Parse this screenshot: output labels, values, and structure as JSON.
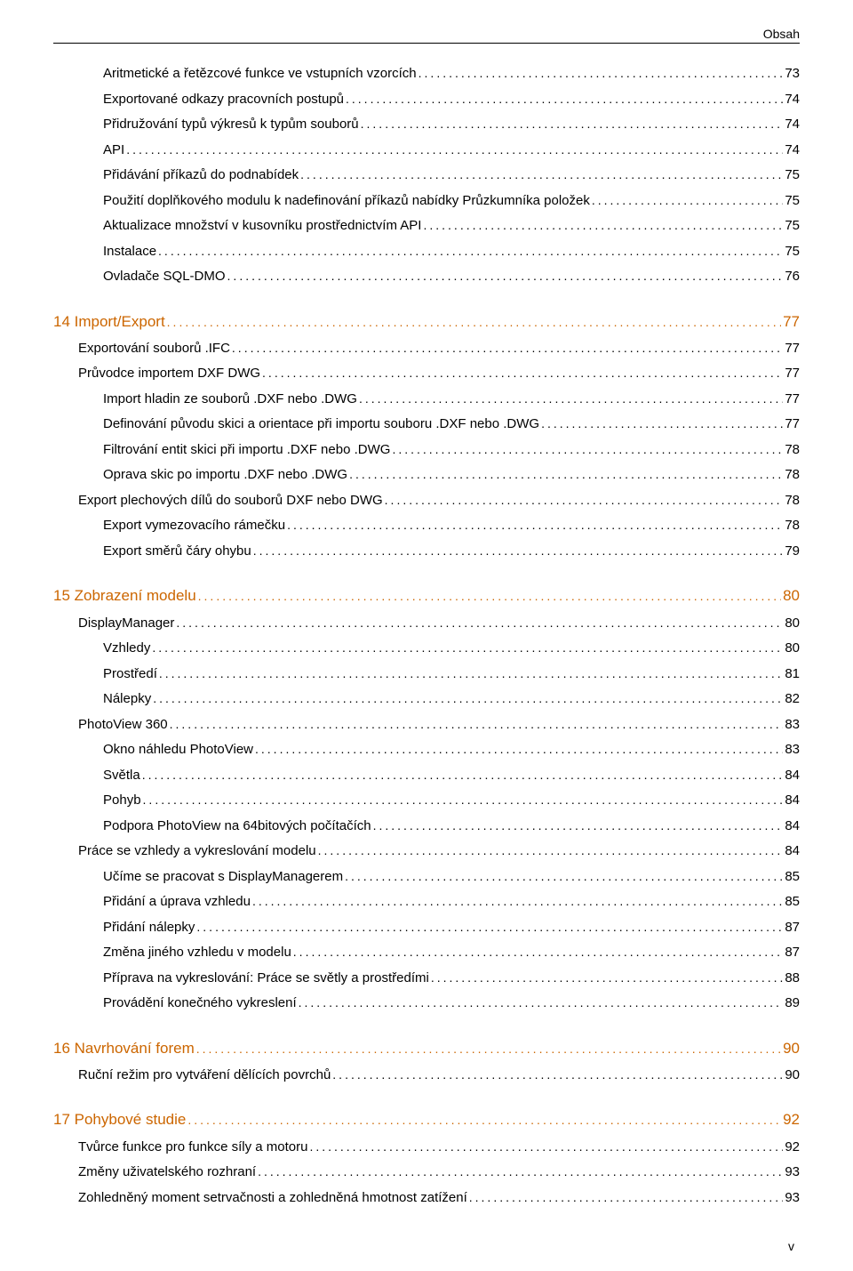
{
  "header_label": "Obsah",
  "page_footer": "v",
  "groups": [
    {
      "rows": [
        {
          "label": "Aritmetické a řetězcové funkce ve vstupních vzorcích",
          "page": "73",
          "indent": 2,
          "kind": "sub"
        },
        {
          "label": "Exportované odkazy pracovních postupů",
          "page": "74",
          "indent": 2,
          "kind": "sub"
        },
        {
          "label": "Přidružování typů výkresů k typům souborů",
          "page": "74",
          "indent": 2,
          "kind": "sub"
        },
        {
          "label": "API",
          "page": "74",
          "indent": 2,
          "kind": "sub"
        },
        {
          "label": "Přidávání příkazů do podnabídek",
          "page": "75",
          "indent": 2,
          "kind": "sub"
        },
        {
          "label": "Použití doplňkového modulu k nadefinování příkazů nabídky Průzkumníka položek",
          "page": "75",
          "indent": 2,
          "kind": "sub"
        },
        {
          "label": "Aktualizace množství v kusovníku prostřednictvím API",
          "page": "75",
          "indent": 2,
          "kind": "sub"
        },
        {
          "label": "Instalace",
          "page": "75",
          "indent": 2,
          "kind": "sub"
        },
        {
          "label": "Ovladače SQL-DMO",
          "page": "76",
          "indent": 2,
          "kind": "sub"
        }
      ]
    },
    {
      "rows": [
        {
          "label": "14 Import/Export",
          "page": "77",
          "indent": 0,
          "kind": "chapter"
        },
        {
          "label": "Exportování souborů .IFC",
          "page": "77",
          "indent": 1,
          "kind": "sub"
        },
        {
          "label": "Průvodce importem DXF DWG",
          "page": "77",
          "indent": 1,
          "kind": "sub"
        },
        {
          "label": "Import hladin ze souborů .DXF nebo .DWG",
          "page": "77",
          "indent": 2,
          "kind": "sub"
        },
        {
          "label": "Definování původu skici a orientace při importu souboru .DXF nebo .DWG",
          "page": "77",
          "indent": 2,
          "kind": "sub"
        },
        {
          "label": "Filtrování entit skici při importu .DXF nebo .DWG",
          "page": "78",
          "indent": 2,
          "kind": "sub"
        },
        {
          "label": "Oprava skic po importu .DXF nebo .DWG",
          "page": "78",
          "indent": 2,
          "kind": "sub"
        },
        {
          "label": "Export plechových dílů do souborů DXF nebo DWG",
          "page": "78",
          "indent": 1,
          "kind": "sub"
        },
        {
          "label": "Export vymezovacího rámečku",
          "page": "78",
          "indent": 2,
          "kind": "sub"
        },
        {
          "label": "Export směrů čáry ohybu",
          "page": "79",
          "indent": 2,
          "kind": "sub"
        }
      ]
    },
    {
      "rows": [
        {
          "label": "15 Zobrazení modelu",
          "page": "80",
          "indent": 0,
          "kind": "chapter"
        },
        {
          "label": "DisplayManager ",
          "page": "80",
          "indent": 1,
          "kind": "sub"
        },
        {
          "label": "Vzhledy",
          "page": "80",
          "indent": 2,
          "kind": "sub"
        },
        {
          "label": "Prostředí",
          "page": "81",
          "indent": 2,
          "kind": "sub"
        },
        {
          "label": "Nálepky",
          "page": "82",
          "indent": 2,
          "kind": "sub"
        },
        {
          "label": "PhotoView 360",
          "page": "83",
          "indent": 1,
          "kind": "sub"
        },
        {
          "label": "Okno náhledu PhotoView",
          "page": "83",
          "indent": 2,
          "kind": "sub"
        },
        {
          "label": "Světla",
          "page": "84",
          "indent": 2,
          "kind": "sub"
        },
        {
          "label": "Pohyb",
          "page": "84",
          "indent": 2,
          "kind": "sub"
        },
        {
          "label": "Podpora PhotoView na 64bitových počítačích",
          "page": "84",
          "indent": 2,
          "kind": "sub"
        },
        {
          "label": "Práce se vzhledy a vykreslování modelu",
          "page": "84",
          "indent": 1,
          "kind": "sub"
        },
        {
          "label": "Učíme se pracovat s DisplayManagerem",
          "page": "85",
          "indent": 2,
          "kind": "sub"
        },
        {
          "label": "Přidání a úprava vzhledu",
          "page": "85",
          "indent": 2,
          "kind": "sub"
        },
        {
          "label": "Přidání nálepky",
          "page": "87",
          "indent": 2,
          "kind": "sub"
        },
        {
          "label": "Změna jiného vzhledu v modelu",
          "page": "87",
          "indent": 2,
          "kind": "sub"
        },
        {
          "label": "Příprava na vykreslování: Práce se světly a prostředími",
          "page": "88",
          "indent": 2,
          "kind": "sub"
        },
        {
          "label": "Provádění konečného vykreslení",
          "page": "89",
          "indent": 2,
          "kind": "sub"
        }
      ]
    },
    {
      "rows": [
        {
          "label": "16 Navrhování forem",
          "page": "90",
          "indent": 0,
          "kind": "chapter"
        },
        {
          "label": "Ruční režim pro vytváření dělících povrchů",
          "page": "90",
          "indent": 1,
          "kind": "sub"
        }
      ]
    },
    {
      "rows": [
        {
          "label": "17 Pohybové studie",
          "page": "92",
          "indent": 0,
          "kind": "chapter"
        },
        {
          "label": "Tvůrce funkce pro funkce síly a motoru",
          "page": "92",
          "indent": 1,
          "kind": "sub"
        },
        {
          "label": "Změny uživatelského rozhraní",
          "page": "93",
          "indent": 1,
          "kind": "sub"
        },
        {
          "label": "Zohledněný moment setrvačnosti a zohledněná hmotnost zatížení",
          "page": "93",
          "indent": 1,
          "kind": "sub"
        }
      ]
    }
  ]
}
